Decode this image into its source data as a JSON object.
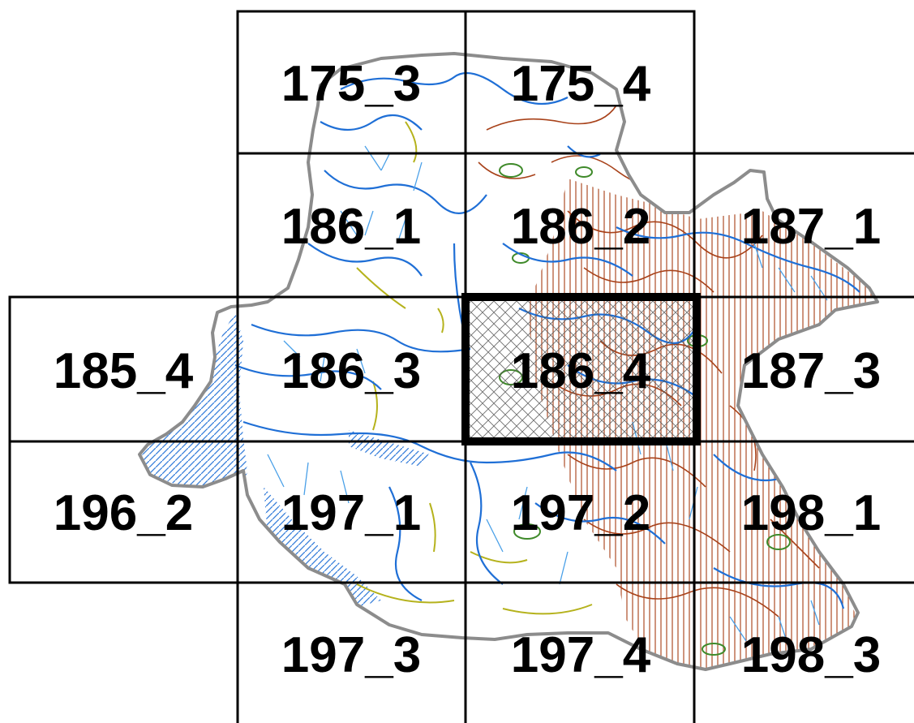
{
  "map": {
    "colors": {
      "background": "#ffffff",
      "grid_line": "#000000",
      "boundary": "#8c8c8c",
      "stream": "#1f6fd6",
      "stream_light": "#4aa0e8",
      "contour": "#a8421a",
      "wetland_olive": "#b5b21c",
      "wetland_green": "#3f8a2a",
      "selected_hatch": "#555555"
    },
    "tiles": [
      {
        "id": "t175_3",
        "label": "175_3"
      },
      {
        "id": "t175_4",
        "label": "175_4"
      },
      {
        "id": "t186_1",
        "label": "186_1"
      },
      {
        "id": "t186_2",
        "label": "186_2"
      },
      {
        "id": "t187_1",
        "label": "187_1"
      },
      {
        "id": "t185_4",
        "label": "185_4"
      },
      {
        "id": "t186_3",
        "label": "186_3"
      },
      {
        "id": "t186_4",
        "label": "186_4",
        "selected": true
      },
      {
        "id": "t187_3",
        "label": "187_3"
      },
      {
        "id": "t196_2",
        "label": "196_2"
      },
      {
        "id": "t197_1",
        "label": "197_1"
      },
      {
        "id": "t197_2",
        "label": "197_2"
      },
      {
        "id": "t198_1",
        "label": "198_1"
      },
      {
        "id": "t197_3",
        "label": "197_3"
      },
      {
        "id": "t197_4",
        "label": "197_4"
      },
      {
        "id": "t198_3",
        "label": "198_3"
      }
    ]
  }
}
